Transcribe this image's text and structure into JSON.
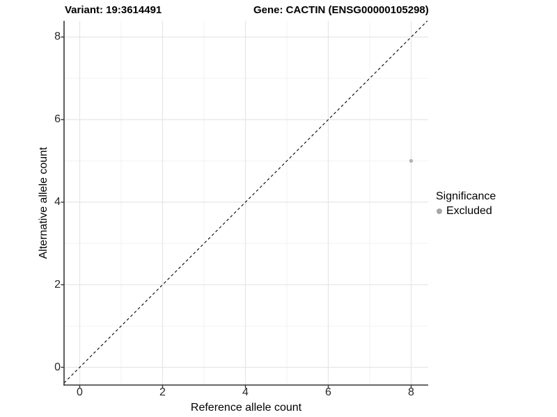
{
  "chart_data": {
    "type": "scatter",
    "title_left": "Variant: 19:3614491",
    "title_right": "Gene: CACTIN (ENSG00000105298)",
    "xlabel": "Reference allele count",
    "ylabel": "Alternative allele count",
    "xlim": [
      -0.4,
      8.4
    ],
    "ylim": [
      -0.4,
      8.4
    ],
    "x_major_ticks": [
      0,
      2,
      4,
      6,
      8
    ],
    "y_major_ticks": [
      0,
      2,
      4,
      6,
      8
    ],
    "x_minor_ticks": [
      1,
      3,
      5,
      7
    ],
    "y_minor_ticks": [
      1,
      3,
      5,
      7
    ],
    "grid": true,
    "reference_line": {
      "equation": "y = x",
      "style": "dashed",
      "color": "#000000"
    },
    "series": [
      {
        "name": "Excluded",
        "color": "#b3b3b3",
        "points": [
          {
            "x": 8,
            "y": 5
          }
        ]
      }
    ],
    "legend": {
      "title": "Significance",
      "position": "right",
      "entries": [
        {
          "label": "Excluded",
          "color": "#a6a6a6"
        }
      ]
    }
  },
  "colors": {
    "axis_line": "#333333",
    "tick_mark": "#333333",
    "tick_label": "#262626",
    "grid_major": "#e6e6e6",
    "grid_minor": "#f2f2f2",
    "background": "#ffffff"
  }
}
